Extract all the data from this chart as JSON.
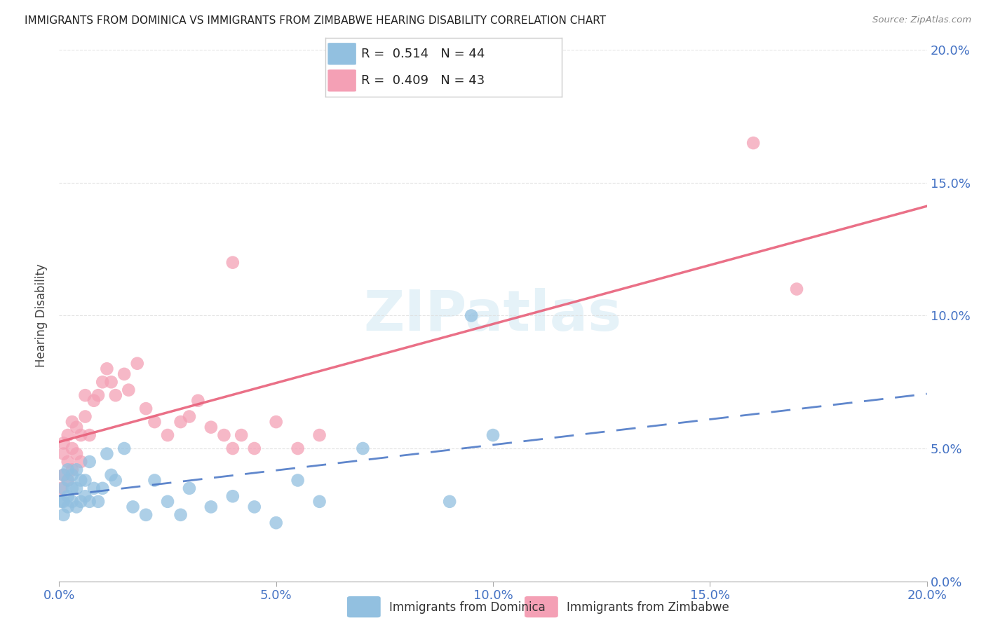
{
  "title": "IMMIGRANTS FROM DOMINICA VS IMMIGRANTS FROM ZIMBABWE HEARING DISABILITY CORRELATION CHART",
  "source": "Source: ZipAtlas.com",
  "ylabel": "Hearing Disability",
  "xlim": [
    0.0,
    0.2
  ],
  "ylim": [
    0.0,
    0.2
  ],
  "dominica_color": "#92c0e0",
  "zimbabwe_color": "#f4a0b5",
  "dominica_line_color": "#4472c4",
  "zimbabwe_line_color": "#e8607a",
  "tick_color": "#4472c4",
  "grid_color": "#dddddd",
  "dominica_R": 0.514,
  "dominica_N": 44,
  "zimbabwe_R": 0.409,
  "zimbabwe_N": 43,
  "dom_x": [
    0.0005,
    0.001,
    0.001,
    0.001,
    0.001,
    0.002,
    0.002,
    0.002,
    0.002,
    0.003,
    0.003,
    0.003,
    0.004,
    0.004,
    0.004,
    0.005,
    0.005,
    0.006,
    0.006,
    0.007,
    0.007,
    0.008,
    0.009,
    0.01,
    0.011,
    0.012,
    0.013,
    0.015,
    0.017,
    0.02,
    0.022,
    0.025,
    0.028,
    0.03,
    0.035,
    0.04,
    0.045,
    0.05,
    0.055,
    0.06,
    0.07,
    0.09,
    0.095,
    0.1
  ],
  "dom_y": [
    0.03,
    0.025,
    0.03,
    0.035,
    0.04,
    0.028,
    0.032,
    0.038,
    0.042,
    0.03,
    0.035,
    0.04,
    0.028,
    0.035,
    0.042,
    0.03,
    0.038,
    0.032,
    0.038,
    0.03,
    0.045,
    0.035,
    0.03,
    0.035,
    0.048,
    0.04,
    0.038,
    0.05,
    0.028,
    0.025,
    0.038,
    0.03,
    0.025,
    0.035,
    0.028,
    0.032,
    0.028,
    0.022,
    0.038,
    0.03,
    0.05,
    0.03,
    0.1,
    0.055
  ],
  "zim_x": [
    0.0005,
    0.001,
    0.001,
    0.001,
    0.002,
    0.002,
    0.002,
    0.003,
    0.003,
    0.003,
    0.004,
    0.004,
    0.005,
    0.005,
    0.006,
    0.006,
    0.007,
    0.008,
    0.009,
    0.01,
    0.011,
    0.012,
    0.013,
    0.015,
    0.016,
    0.018,
    0.02,
    0.022,
    0.025,
    0.028,
    0.03,
    0.032,
    0.035,
    0.038,
    0.04,
    0.042,
    0.045,
    0.05,
    0.055,
    0.06,
    0.16,
    0.17,
    0.04
  ],
  "zim_y": [
    0.035,
    0.04,
    0.048,
    0.052,
    0.038,
    0.045,
    0.055,
    0.042,
    0.05,
    0.06,
    0.048,
    0.058,
    0.045,
    0.055,
    0.062,
    0.07,
    0.055,
    0.068,
    0.07,
    0.075,
    0.08,
    0.075,
    0.07,
    0.078,
    0.072,
    0.082,
    0.065,
    0.06,
    0.055,
    0.06,
    0.062,
    0.068,
    0.058,
    0.055,
    0.05,
    0.055,
    0.05,
    0.06,
    0.05,
    0.055,
    0.165,
    0.11,
    0.12
  ]
}
